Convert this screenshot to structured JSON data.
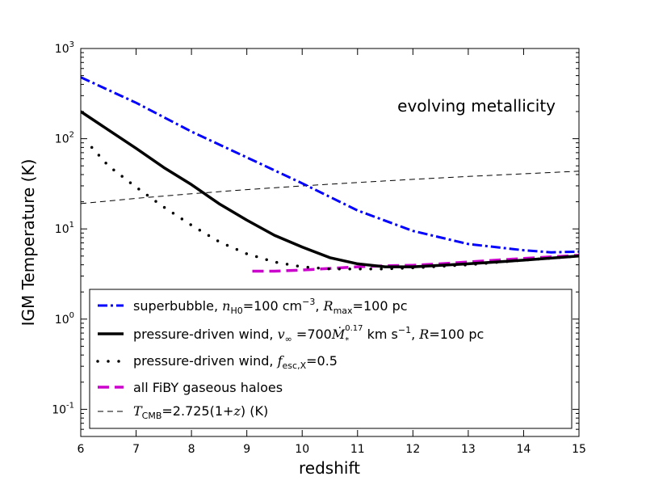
{
  "chart_data": {
    "type": "line",
    "title": "",
    "annotation": "evolving metallicity",
    "xlabel": "redshift",
    "ylabel": "IGM Temperature (K)",
    "xlim": [
      6,
      15
    ],
    "ylim": [
      0.05,
      1000
    ],
    "yscale": "log",
    "grid": false,
    "legend_position": "lower-left",
    "x_ticks": [
      6,
      7,
      8,
      9,
      10,
      11,
      12,
      13,
      14,
      15
    ],
    "x_tick_labels": [
      "6",
      "7",
      "8",
      "9",
      "10",
      "11",
      "12",
      "13",
      "14",
      "15"
    ],
    "y_ticks": [
      {
        "value": 0.1,
        "base": "10",
        "exp": "-1"
      },
      {
        "value": 1,
        "base": "10",
        "exp": "0"
      },
      {
        "value": 10,
        "base": "10",
        "exp": "1"
      },
      {
        "value": 100,
        "base": "10",
        "exp": "2"
      },
      {
        "value": 1000,
        "base": "10",
        "exp": "3"
      }
    ],
    "series": [
      {
        "name": "superbubble, n_H0=100 cm^-3, R_max=100 pc",
        "color": "#0000ff",
        "style": "dashdot",
        "x": [
          6.0,
          7.0,
          8.0,
          9.0,
          10.0,
          11.0,
          12.0,
          13.0,
          14.0,
          14.5,
          15.0
        ],
        "y": [
          480,
          250,
          120,
          62,
          32,
          16,
          9.5,
          6.8,
          5.8,
          5.5,
          5.6
        ]
      },
      {
        "name": "pressure-driven wind, v_inf=700 M*^0.17 km s^-1, R=100 pc",
        "color": "#000000",
        "style": "solid",
        "x": [
          6.0,
          6.5,
          7.0,
          7.5,
          8.0,
          8.5,
          9.0,
          9.5,
          10.0,
          10.5,
          11.0,
          11.5,
          12.0,
          13.0,
          14.0,
          15.0
        ],
        "y": [
          200,
          125,
          78,
          48,
          31,
          19,
          12.5,
          8.5,
          6.3,
          4.8,
          4.1,
          3.8,
          3.8,
          4.1,
          4.5,
          5.0
        ]
      },
      {
        "name": "pressure-driven wind, f_esc,X=0.5",
        "color": "#000000",
        "style": "dotted",
        "x": [
          6.2,
          6.5,
          7.0,
          7.5,
          8.0,
          8.5,
          9.0,
          9.5,
          10.0,
          10.5,
          11.0,
          11.5,
          12.0,
          13.0,
          14.0,
          15.0
        ],
        "y": [
          80,
          50,
          29,
          17.5,
          11,
          7.2,
          5.3,
          4.3,
          3.8,
          3.6,
          3.6,
          3.6,
          3.7,
          4.0,
          4.5,
          5.0
        ]
      },
      {
        "name": "all FiBY gaseous haloes",
        "color": "#cc00cc",
        "style": "dashed",
        "x": [
          9.1,
          9.5,
          10.0,
          10.5,
          11.0,
          11.5,
          12.0,
          12.5,
          13.0,
          13.5,
          14.0,
          14.5,
          15.0
        ],
        "y": [
          3.4,
          3.4,
          3.5,
          3.65,
          3.8,
          3.9,
          3.95,
          4.1,
          4.3,
          4.5,
          4.7,
          4.9,
          5.1
        ]
      },
      {
        "name": "T_CMB=2.725(1+z) (K)",
        "color": "#000000",
        "style": "thin-dashed",
        "x": [
          6,
          7,
          8,
          9,
          10,
          11,
          12,
          13,
          14,
          15
        ],
        "y": [
          19.075,
          21.8,
          24.525,
          27.25,
          29.975,
          32.7,
          35.425,
          38.15,
          40.875,
          43.6
        ]
      }
    ],
    "legend": [
      {
        "main": "superbubble, ",
        "math1": "n",
        "math1_sub": "H0",
        "mid1": "=100 cm",
        "sup1": "−3",
        "mid2": ", ",
        "math2": "R",
        "math2_sub": "max",
        "tail": "=100 pc"
      },
      {
        "main": "pressure-driven wind, ",
        "math1": "v",
        "math1_sub": "∞",
        "mid1": " =700",
        "math2": "Ṁ",
        "math2_sub": "*",
        "sup2": "0.17",
        "mid2": " km s",
        "sup1": "−1",
        "mid3": ", ",
        "math3": "R",
        "tail": "=100 pc"
      },
      {
        "main": "pressure-driven wind, ",
        "math1": "f",
        "math1_sub": "esc,X",
        "tail": "=0.5"
      },
      {
        "main": "all FiBY gaseous haloes"
      },
      {
        "math1": "T",
        "math1_sub": "CMB",
        "mid1": "=2.725(1+",
        "math2": "z",
        "tail": ") (K)"
      }
    ]
  }
}
